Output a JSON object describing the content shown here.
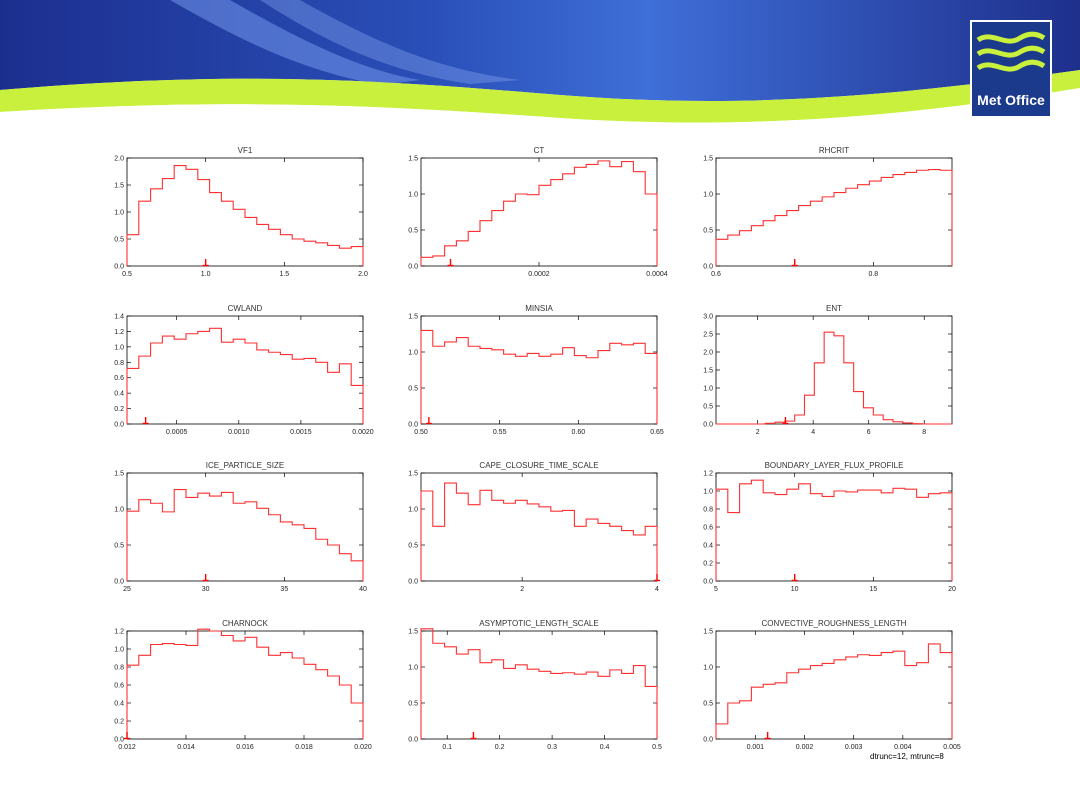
{
  "logo": {
    "text": "Met Office",
    "bg_color": "#1b3a8c",
    "wave_color": "#c8f03c"
  },
  "header": {
    "colors": {
      "blue_dark": "#1c2f8f",
      "blue_light": "#3a6fd8",
      "green": "#c8f03c"
    }
  },
  "footnote": "dtrunc=12, mtrunc=8",
  "chart_data": [
    {
      "type": "histogram",
      "title": "VF1",
      "x_ticks": [
        0.5,
        1.0,
        1.5,
        2.0
      ],
      "x_tick_labels": [
        "0.5",
        "1.0",
        "1.5",
        "2.0"
      ],
      "xlim": [
        0.5,
        2.0
      ],
      "y_ticks": [
        0,
        0.5,
        1.0,
        1.5,
        2.0
      ],
      "y_tick_labels": [
        "0.0",
        "0.5",
        "1.0",
        "1.5",
        "2.0"
      ],
      "ylim": [
        0,
        2.0
      ],
      "values": [
        0.58,
        1.2,
        1.43,
        1.62,
        1.86,
        1.79,
        1.6,
        1.36,
        1.2,
        1.05,
        0.9,
        0.77,
        0.68,
        0.58,
        0.5,
        0.46,
        0.43,
        0.38,
        0.33,
        0.36
      ],
      "marker": 1.0
    },
    {
      "type": "histogram",
      "title": "CT",
      "x_ticks": [
        0.0002,
        0.0004
      ],
      "x_tick_labels": [
        "0.0002",
        "0.0004"
      ],
      "xlim": [
        0.0,
        0.0004
      ],
      "y_ticks": [
        0,
        0.5,
        1.0,
        1.5
      ],
      "y_tick_labels": [
        "0.0",
        "0.5",
        "1.0",
        "1.5"
      ],
      "ylim": [
        0,
        1.5
      ],
      "values": [
        0.12,
        0.14,
        0.28,
        0.35,
        0.48,
        0.63,
        0.77,
        0.9,
        1.0,
        0.99,
        1.12,
        1.2,
        1.28,
        1.37,
        1.41,
        1.46,
        1.38,
        1.45,
        1.31,
        1.0
      ],
      "marker": 5e-05
    },
    {
      "type": "histogram",
      "title": "RHCRIT",
      "x_ticks": [
        0.6,
        0.8
      ],
      "x_tick_labels": [
        "0.6",
        "0.8"
      ],
      "xlim": [
        0.6,
        0.9
      ],
      "y_ticks": [
        0,
        0.5,
        1.0,
        1.5
      ],
      "y_tick_labels": [
        "0.0",
        "0.5",
        "1.0",
        "1.5"
      ],
      "ylim": [
        0,
        1.5
      ],
      "values": [
        0.37,
        0.43,
        0.49,
        0.56,
        0.63,
        0.7,
        0.77,
        0.84,
        0.9,
        0.96,
        1.02,
        1.08,
        1.13,
        1.18,
        1.23,
        1.27,
        1.3,
        1.33,
        1.34,
        1.33
      ],
      "marker": 0.7
    },
    {
      "type": "histogram",
      "title": "CWLAND",
      "x_ticks": [
        0.0005,
        0.001,
        0.0015,
        0.002
      ],
      "x_tick_labels": [
        "0.0005",
        "0.0010",
        "0.0015",
        "0.0020"
      ],
      "xlim": [
        0.0001,
        0.002
      ],
      "y_ticks": [
        0,
        0.2,
        0.4,
        0.6,
        0.8,
        1.0,
        1.2,
        1.4
      ],
      "y_tick_labels": [
        "0.0",
        "0.2",
        "0.4",
        "0.6",
        "0.8",
        "1.0",
        "1.2",
        "1.4"
      ],
      "ylim": [
        0,
        1.4
      ],
      "values": [
        0.72,
        0.88,
        1.05,
        1.14,
        1.1,
        1.17,
        1.2,
        1.24,
        1.06,
        1.1,
        1.05,
        0.96,
        0.93,
        0.9,
        0.84,
        0.85,
        0.8,
        0.67,
        0.78,
        0.5
      ],
      "marker": 0.00025
    },
    {
      "type": "histogram",
      "title": "MINSIA",
      "x_ticks": [
        0.5,
        0.55,
        0.6,
        0.65
      ],
      "x_tick_labels": [
        "0.50",
        "0.55",
        "0.60",
        "0.65"
      ],
      "xlim": [
        0.5,
        0.65
      ],
      "y_ticks": [
        0,
        0.5,
        1.0,
        1.5
      ],
      "y_tick_labels": [
        "0.0",
        "0.5",
        "1.0",
        "1.5"
      ],
      "ylim": [
        0,
        1.5
      ],
      "values": [
        1.3,
        1.08,
        1.14,
        1.2,
        1.08,
        1.05,
        1.03,
        0.97,
        0.94,
        0.98,
        0.94,
        0.97,
        1.06,
        0.95,
        0.92,
        1.02,
        1.12,
        1.1,
        1.12,
        0.98
      ],
      "marker": 0.505
    },
    {
      "type": "histogram",
      "title": "ENT",
      "x_ticks": [
        2,
        4,
        6,
        8
      ],
      "x_tick_labels": [
        "2",
        "4",
        "6",
        "8"
      ],
      "xlim": [
        0.5,
        9.0
      ],
      "y_ticks": [
        0,
        0.5,
        1.0,
        1.5,
        2.0,
        2.5,
        3.0
      ],
      "y_tick_labels": [
        "0.0",
        "0.5",
        "1.0",
        "1.5",
        "2.0",
        "2.5",
        "3.0"
      ],
      "ylim": [
        0,
        3.0
      ],
      "values": [
        0,
        0,
        0,
        0,
        0,
        0.02,
        0.05,
        0.08,
        0.25,
        0.8,
        1.7,
        2.55,
        2.45,
        1.7,
        0.9,
        0.45,
        0.25,
        0.12,
        0.06,
        0.03,
        0.01,
        0,
        0,
        0
      ],
      "marker": 3.0
    },
    {
      "type": "histogram",
      "title": "ICE_PARTICLE_SIZE",
      "x_ticks": [
        25,
        30,
        35,
        40
      ],
      "x_tick_labels": [
        "25",
        "30",
        "35",
        "40"
      ],
      "xlim": [
        25,
        40
      ],
      "y_ticks": [
        0,
        0.5,
        1.0,
        1.5
      ],
      "y_tick_labels": [
        "0.0",
        "0.5",
        "1.0",
        "1.5"
      ],
      "ylim": [
        0,
        1.5
      ],
      "values": [
        0.97,
        1.13,
        1.08,
        0.96,
        1.27,
        1.16,
        1.22,
        1.18,
        1.23,
        1.08,
        1.1,
        1.01,
        0.92,
        0.82,
        0.78,
        0.73,
        0.58,
        0.5,
        0.38,
        0.28
      ],
      "marker": 30
    },
    {
      "type": "histogram",
      "title": "CAPE_CLOSURE_TIME_SCALE",
      "x_ticks": [
        2,
        4
      ],
      "x_tick_labels": [
        "2",
        "4"
      ],
      "xlim": [
        0.5,
        4.0
      ],
      "y_ticks": [
        0,
        0.5,
        1.0,
        1.5
      ],
      "y_tick_labels": [
        "0.0",
        "0.5",
        "1.0",
        "1.5"
      ],
      "ylim": [
        0,
        1.5
      ],
      "values": [
        1.25,
        0.76,
        1.36,
        1.22,
        1.06,
        1.26,
        1.12,
        1.08,
        1.12,
        1.07,
        1.03,
        0.97,
        0.98,
        0.76,
        0.86,
        0.8,
        0.76,
        0.7,
        0.64,
        0.76
      ],
      "marker": 4.0
    },
    {
      "type": "histogram",
      "title": "BOUNDARY_LAYER_FLUX_PROFILE",
      "x_ticks": [
        5,
        10,
        15,
        20
      ],
      "x_tick_labels": [
        "5",
        "10",
        "15",
        "20"
      ],
      "xlim": [
        5,
        20
      ],
      "y_ticks": [
        0,
        0.2,
        0.4,
        0.6,
        0.8,
        1.0,
        1.2
      ],
      "y_tick_labels": [
        "0.0",
        "0.2",
        "0.4",
        "0.6",
        "0.8",
        "1.0",
        "1.2"
      ],
      "ylim": [
        0,
        1.2
      ],
      "values": [
        1.02,
        0.76,
        1.08,
        1.12,
        0.98,
        0.96,
        1.02,
        1.08,
        0.97,
        0.94,
        1.0,
        0.99,
        1.01,
        1.01,
        0.98,
        1.03,
        1.02,
        0.93,
        0.97,
        0.98
      ],
      "marker": 10
    },
    {
      "type": "histogram",
      "title": "CHARNOCK",
      "x_ticks": [
        0.012,
        0.014,
        0.016,
        0.018,
        0.02
      ],
      "x_tick_labels": [
        "0.012",
        "0.014",
        "0.016",
        "0.018",
        "0.020"
      ],
      "xlim": [
        0.012,
        0.02
      ],
      "y_ticks": [
        0,
        0.2,
        0.4,
        0.6,
        0.8,
        1.0,
        1.2
      ],
      "y_tick_labels": [
        "0.0",
        "0.2",
        "0.4",
        "0.6",
        "0.8",
        "1.0",
        "1.2"
      ],
      "ylim": [
        0,
        1.2
      ],
      "values": [
        0.82,
        0.93,
        1.05,
        1.06,
        1.05,
        1.04,
        1.22,
        1.2,
        1.15,
        1.09,
        1.13,
        1.02,
        0.93,
        0.96,
        0.9,
        0.83,
        0.77,
        0.7,
        0.6,
        0.4
      ],
      "marker": 0.012
    },
    {
      "type": "histogram",
      "title": "ASYMPTOTIC_LENGTH_SCALE",
      "x_ticks": [
        0.1,
        0.2,
        0.3,
        0.4,
        0.5
      ],
      "x_tick_labels": [
        "0.1",
        "0.2",
        "0.3",
        "0.4",
        "0.5"
      ],
      "xlim": [
        0.05,
        0.5
      ],
      "y_ticks": [
        0,
        0.5,
        1.0,
        1.5
      ],
      "y_tick_labels": [
        "0.0",
        "0.5",
        "1.0",
        "1.5"
      ],
      "ylim": [
        0,
        1.5
      ],
      "values": [
        1.53,
        1.33,
        1.28,
        1.18,
        1.24,
        1.06,
        1.1,
        0.98,
        1.03,
        0.97,
        0.94,
        0.91,
        0.92,
        0.9,
        0.93,
        0.87,
        0.96,
        0.91,
        1.02,
        0.73
      ],
      "marker": 0.15
    },
    {
      "type": "histogram",
      "title": "CONVECTIVE_ROUGHNESS_LENGTH",
      "x_ticks": [
        0.001,
        0.002,
        0.003,
        0.004,
        0.005
      ],
      "x_tick_labels": [
        "0.001",
        "0.002",
        "0.003",
        "0.004",
        "0.005"
      ],
      "xlim": [
        0.0002,
        0.005
      ],
      "y_ticks": [
        0,
        0.5,
        1.0,
        1.5
      ],
      "y_tick_labels": [
        "0.0",
        "0.5",
        "1.0",
        "1.5"
      ],
      "ylim": [
        0,
        1.5
      ],
      "values": [
        0.21,
        0.5,
        0.53,
        0.72,
        0.76,
        0.78,
        0.92,
        0.97,
        1.02,
        1.05,
        1.1,
        1.14,
        1.17,
        1.16,
        1.2,
        1.22,
        1.02,
        1.06,
        1.32,
        1.2
      ],
      "marker": 0.00125
    }
  ]
}
